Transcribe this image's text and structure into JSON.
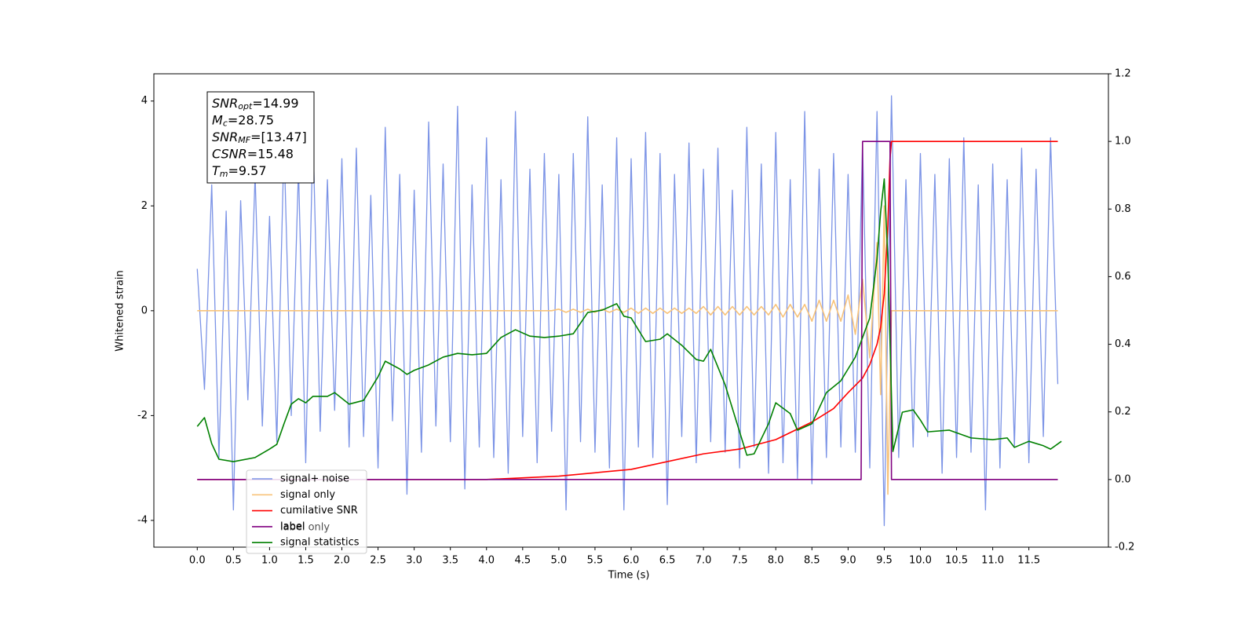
{
  "chart_data": {
    "type": "line",
    "xlabel": "Time (s)",
    "ylabel": "Whitened strain",
    "xlim": [
      -0.6,
      12.6
    ],
    "ylim": [
      -4.51,
      4.52
    ],
    "y2lim": [
      -0.2,
      1.2
    ],
    "xticks": [
      {
        "value": 0,
        "label": "0.0"
      },
      0.5,
      {
        "value": 1,
        "label": "1.0"
      },
      1.5,
      {
        "value": 2,
        "label": "2.0"
      },
      2.5,
      {
        "value": 3,
        "label": "3.0"
      },
      3.5,
      {
        "value": 4,
        "label": "4.0"
      },
      4.5,
      {
        "value": 5,
        "label": "5.0"
      },
      5.5,
      {
        "value": 6,
        "label": "6.0"
      },
      6.5,
      {
        "value": 7,
        "label": "7.0"
      },
      7.5,
      {
        "value": 8,
        "label": "8.0"
      },
      8.5,
      {
        "value": 9,
        "label": "9.0"
      },
      9.5,
      {
        "value": 10,
        "label": "10.0"
      },
      10.5,
      {
        "value": 11,
        "label": "11.0"
      },
      11.5
    ],
    "yticks": [
      -4,
      -2,
      0,
      2,
      4
    ],
    "y2ticks": [
      -0.2,
      {
        "value": 0,
        "label": "0.0"
      },
      0.2,
      0.4,
      0.6,
      0.8,
      {
        "value": 1,
        "label": "1.0"
      },
      1.2
    ],
    "annotation": [
      {
        "name": "SNR",
        "sub": "opt",
        "text": "=14.99"
      },
      {
        "name": "M",
        "sub": "c",
        "text": "=28.75"
      },
      {
        "name": "SNR",
        "sub": "MF",
        "text": "=[13.47]"
      },
      {
        "name": "CSNR",
        "text": "=15.48"
      },
      {
        "name": "T",
        "sub": "m",
        "text": "=9.57"
      }
    ],
    "extra_legend_entry": "label only",
    "series": [
      {
        "name": "signal+ noise",
        "color": "#7b93e6",
        "axis": "y",
        "x": [
          0,
          0.1,
          0.2,
          0.3,
          0.4,
          0.5,
          0.6,
          0.7,
          0.8,
          0.9,
          1,
          1.1,
          1.2,
          1.3,
          1.4,
          1.5,
          1.6,
          1.7,
          1.8,
          1.9,
          2,
          2.1,
          2.2,
          2.3,
          2.4,
          2.5,
          2.6,
          2.7,
          2.8,
          2.9,
          3,
          3.1,
          3.2,
          3.3,
          3.4,
          3.5,
          3.6,
          3.7,
          3.8,
          3.9,
          4,
          4.1,
          4.2,
          4.3,
          4.4,
          4.5,
          4.6,
          4.7,
          4.8,
          4.9,
          5,
          5.1,
          5.2,
          5.3,
          5.4,
          5.5,
          5.6,
          5.7,
          5.8,
          5.9,
          6,
          6.1,
          6.2,
          6.3,
          6.4,
          6.5,
          6.6,
          6.7,
          6.8,
          6.9,
          7,
          7.1,
          7.2,
          7.3,
          7.4,
          7.5,
          7.6,
          7.7,
          7.8,
          7.9,
          8,
          8.1,
          8.2,
          8.3,
          8.4,
          8.5,
          8.6,
          8.7,
          8.8,
          8.9,
          9,
          9.1,
          9.2,
          9.3,
          9.4,
          9.5,
          9.6,
          9.7,
          9.8,
          9.9,
          10,
          10.1,
          10.2,
          10.3,
          10.4,
          10.5,
          10.6,
          10.7,
          10.8,
          10.9,
          11,
          11.1,
          11.2,
          11.3,
          11.4,
          11.5,
          11.6,
          11.7,
          11.8,
          11.9
        ],
        "values": [
          0.8,
          -1.5,
          2.4,
          -2.8,
          1.9,
          -3.8,
          2.1,
          -1.7,
          2.6,
          -2.2,
          1.8,
          -2.5,
          3.2,
          -2.0,
          2.7,
          -2.9,
          3.4,
          -2.3,
          2.5,
          -1.9,
          2.9,
          -2.6,
          3.1,
          -2.4,
          2.2,
          -3.0,
          3.5,
          -2.1,
          2.6,
          -3.5,
          2.3,
          -2.7,
          3.6,
          -2.2,
          2.8,
          -2.5,
          3.9,
          -3.4,
          2.4,
          -2.6,
          3.3,
          -2.8,
          2.5,
          -3.1,
          3.8,
          -2.4,
          2.7,
          -2.9,
          3.0,
          -2.3,
          2.6,
          -3.8,
          3.0,
          -2.5,
          3.7,
          -2.7,
          2.4,
          -3.0,
          3.3,
          -3.8,
          2.9,
          -2.6,
          3.4,
          -2.8,
          3.0,
          -3.7,
          2.6,
          -2.4,
          3.2,
          -2.9,
          2.7,
          -2.5,
          3.1,
          -2.7,
          2.3,
          -3.0,
          3.5,
          -2.6,
          2.8,
          -3.1,
          3.4,
          -2.9,
          2.5,
          -3.2,
          3.8,
          -3.3,
          2.7,
          -2.8,
          3.0,
          -2.6,
          2.6,
          -2.7,
          3.2,
          -3.0,
          3.8,
          -4.1,
          4.1,
          -2.8,
          2.5,
          -2.6,
          3.0,
          -2.4,
          2.6,
          -3.1,
          2.9,
          -2.8,
          3.3,
          -2.7,
          2.4,
          -3.8,
          2.8,
          -3.0,
          2.5,
          -2.6,
          3.1,
          -2.9,
          2.7,
          -2.4,
          3.3,
          -1.4
        ]
      },
      {
        "name": "signal only",
        "color": "#f8c37a",
        "axis": "y",
        "x": [
          0,
          4.9,
          5,
          5.1,
          5.2,
          5.3,
          5.4,
          5.5,
          5.6,
          5.7,
          5.8,
          5.9,
          6,
          6.1,
          6.2,
          6.3,
          6.4,
          6.5,
          6.6,
          6.7,
          6.8,
          6.9,
          7,
          7.1,
          7.2,
          7.3,
          7.4,
          7.5,
          7.6,
          7.7,
          7.8,
          7.9,
          8,
          8.1,
          8.2,
          8.3,
          8.4,
          8.5,
          8.6,
          8.7,
          8.8,
          8.9,
          9,
          9.1,
          9.2,
          9.3,
          9.4,
          9.45,
          9.5,
          9.55,
          9.6,
          11.9
        ],
        "values": [
          0,
          0,
          0.03,
          -0.03,
          0.03,
          -0.03,
          0.03,
          -0.03,
          0.03,
          -0.03,
          0.03,
          -0.03,
          0.05,
          -0.05,
          0.05,
          -0.05,
          0.05,
          -0.05,
          0.05,
          -0.05,
          0.05,
          -0.05,
          0.08,
          -0.08,
          0.08,
          -0.08,
          0.08,
          -0.08,
          0.08,
          -0.08,
          0.08,
          -0.08,
          0.12,
          -0.12,
          0.12,
          -0.12,
          0.12,
          -0.2,
          0.2,
          -0.2,
          0.2,
          -0.2,
          0.3,
          -0.45,
          0.6,
          -0.9,
          1.3,
          -1.6,
          2.0,
          -3.5,
          0,
          0
        ]
      },
      {
        "name": "cumilative SNR",
        "color": "#ff0000",
        "axis": "y2",
        "x": [
          0,
          4,
          5,
          6,
          7,
          7.5,
          8,
          8.5,
          8.8,
          9,
          9.2,
          9.3,
          9.4,
          9.45,
          9.5,
          9.55,
          9.58,
          9.6,
          11.9
        ],
        "values": [
          0,
          0,
          0.01,
          0.03,
          0.076,
          0.09,
          0.118,
          0.17,
          0.21,
          0.257,
          0.3,
          0.34,
          0.4,
          0.45,
          0.55,
          0.75,
          0.95,
          1,
          1
        ]
      },
      {
        "name": "label",
        "color": "#800080",
        "axis": "y2",
        "x": [
          0,
          9.18,
          9.2,
          9.58,
          9.6,
          11.9
        ],
        "values": [
          0,
          0,
          1,
          1,
          0,
          0
        ]
      },
      {
        "name": "signal statistics",
        "color": "#008000",
        "axis": "y2",
        "x": [
          0,
          0.1,
          0.2,
          0.3,
          0.5,
          0.8,
          1,
          1.1,
          1.2,
          1.3,
          1.4,
          1.5,
          1.6,
          1.8,
          1.9,
          2.1,
          2.3,
          2.5,
          2.6,
          2.8,
          2.9,
          3,
          3.2,
          3.4,
          3.6,
          3.8,
          4,
          4.2,
          4.4,
          4.6,
          4.8,
          5,
          5.2,
          5.4,
          5.6,
          5.8,
          5.9,
          6,
          6.2,
          6.4,
          6.5,
          6.7,
          6.9,
          7,
          7.1,
          7.3,
          7.5,
          7.6,
          7.7,
          7.9,
          8,
          8.2,
          8.3,
          8.5,
          8.7,
          8.9,
          9,
          9.1,
          9.3,
          9.4,
          9.45,
          9.5,
          9.55,
          9.62,
          9.75,
          9.9,
          10,
          10.1,
          10.4,
          10.7,
          11,
          11.2,
          11.3,
          11.5,
          11.7,
          11.8,
          11.95
        ],
        "values": [
          0.157,
          0.183,
          0.106,
          0.06,
          0.053,
          0.065,
          0.09,
          0.104,
          0.165,
          0.223,
          0.239,
          0.227,
          0.246,
          0.246,
          0.257,
          0.223,
          0.234,
          0.304,
          0.35,
          0.327,
          0.311,
          0.323,
          0.339,
          0.362,
          0.373,
          0.369,
          0.373,
          0.42,
          0.443,
          0.424,
          0.42,
          0.424,
          0.431,
          0.494,
          0.501,
          0.52,
          0.483,
          0.478,
          0.408,
          0.415,
          0.431,
          0.397,
          0.355,
          0.35,
          0.385,
          0.28,
          0.141,
          0.072,
          0.076,
          0.165,
          0.227,
          0.195,
          0.146,
          0.165,
          0.257,
          0.292,
          0.327,
          0.362,
          0.478,
          0.652,
          0.791,
          0.889,
          0.652,
          0.083,
          0.199,
          0.206,
          0.176,
          0.141,
          0.146,
          0.123,
          0.118,
          0.123,
          0.095,
          0.113,
          0.1,
          0.09,
          0.113
        ]
      }
    ]
  }
}
